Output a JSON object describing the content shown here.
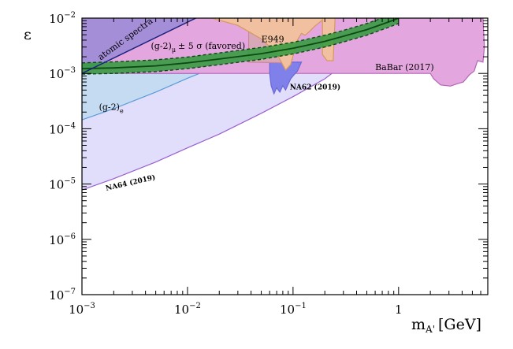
{
  "chart_data": {
    "type": "area",
    "xscale": "log",
    "yscale": "log",
    "xlim": [
      0.001,
      7
    ],
    "ylim": [
      1e-07,
      0.01
    ],
    "xlabel": "m",
    "xlabel_subscript": "A'",
    "xlabel_unit": "[GeV]",
    "ylabel": "ε",
    "grid": false,
    "x_ticks": [
      {
        "value": 0.001,
        "base": "10",
        "exp": "−3"
      },
      {
        "value": 0.01,
        "base": "10",
        "exp": "−2"
      },
      {
        "value": 0.1,
        "base": "10",
        "exp": "−1"
      },
      {
        "value": 1,
        "base": "1",
        "exp": ""
      }
    ],
    "y_ticks": [
      {
        "value": 1e-07,
        "base": "10",
        "exp": "−7"
      },
      {
        "value": 1e-06,
        "base": "10",
        "exp": "−6"
      },
      {
        "value": 1e-05,
        "base": "10",
        "exp": "−5"
      },
      {
        "value": 0.0001,
        "base": "10",
        "exp": "−4"
      },
      {
        "value": 0.001,
        "base": "10",
        "exp": "−3"
      },
      {
        "value": 0.01,
        "base": "10",
        "exp": "−2"
      }
    ],
    "regions": [
      {
        "name": "NA64 (2019)",
        "fill": "#e0defa",
        "stroke": "#9b5fd0",
        "points": [
          [
            0.001,
            7.8e-06
          ],
          [
            0.002,
            1.25e-05
          ],
          [
            0.005,
            2.5e-05
          ],
          [
            0.01,
            4.5e-05
          ],
          [
            0.02,
            8e-05
          ],
          [
            0.05,
            0.00019
          ],
          [
            0.1,
            0.00038
          ],
          [
            0.2,
            0.0008
          ],
          [
            0.5,
            0.003
          ],
          [
            1,
            0.0086
          ],
          [
            1.1,
            0.01
          ],
          [
            0.001,
            0.01
          ]
        ]
      },
      {
        "name": "(g-2)e",
        "fill": "#c4dbf2",
        "stroke": "#5b9bd8",
        "points": [
          [
            0.001,
            0.000145
          ],
          [
            0.002,
            0.00023
          ],
          [
            0.005,
            0.00046
          ],
          [
            0.01,
            0.00082
          ],
          [
            0.013,
            0.001
          ],
          [
            0.001,
            0.001
          ]
        ]
      },
      {
        "name": "BaBar (2017)",
        "fill": "#e3a6de",
        "stroke": "#b565b8",
        "points": [
          [
            0.001,
            0.001
          ],
          [
            2,
            0.001
          ],
          [
            2.15,
            0.0008
          ],
          [
            2.5,
            0.00062
          ],
          [
            3.1,
            0.00059
          ],
          [
            3.6,
            0.00065
          ],
          [
            4.1,
            0.0007
          ],
          [
            4.7,
            0.00095
          ],
          [
            5.2,
            0.0011
          ],
          [
            5.6,
            0.0017
          ],
          [
            6.3,
            0.0016
          ],
          [
            6.5,
            0.003
          ],
          [
            6.3,
            0.01
          ],
          [
            0.001,
            0.01
          ]
        ]
      },
      {
        "name": "NA62 (2019)",
        "fill": "#8080ea",
        "stroke": "#6868d8",
        "points": [
          [
            0.06,
            0.001
          ],
          [
            0.062,
            0.0006
          ],
          [
            0.066,
            0.00043
          ],
          [
            0.07,
            0.00055
          ],
          [
            0.075,
            0.00046
          ],
          [
            0.08,
            0.0006
          ],
          [
            0.085,
            0.0005
          ],
          [
            0.095,
            0.0008
          ],
          [
            0.1,
            0.0009
          ],
          [
            0.11,
            0.0011
          ],
          [
            0.12,
            0.0016
          ],
          [
            0.06,
            0.0016
          ]
        ]
      },
      {
        "name": "atomic spectra",
        "fill": "#a48ed8",
        "stroke": "#a48ed8",
        "points": [
          [
            0.001,
            0.001
          ],
          [
            0.012,
            0.01
          ],
          [
            0.001,
            0.01
          ]
        ]
      },
      {
        "name": "E949",
        "fill": "#d8a8b8",
        "stroke": "#c88898",
        "points": [
          [
            0.038,
            0.01
          ],
          [
            0.038,
            0.0016
          ],
          [
            0.09,
            0.00155
          ],
          [
            0.09,
            0.01
          ]
        ]
      },
      {
        "name": "orange",
        "fill": "#f0c0a0",
        "stroke": "#d8985a",
        "points": [
          [
            0.017,
            0.01
          ],
          [
            0.03,
            0.0074
          ],
          [
            0.05,
            0.0042
          ],
          [
            0.07,
            0.0023
          ],
          [
            0.085,
            0.00115
          ],
          [
            0.095,
            0.00145
          ],
          [
            0.11,
            0.004
          ],
          [
            0.12,
            0.0053
          ],
          [
            0.13,
            0.0049
          ],
          [
            0.14,
            0.0055
          ],
          [
            0.16,
            0.0071
          ],
          [
            0.2,
            0.01
          ]
        ]
      },
      {
        "name": "orange-spike",
        "fill": "#f0c0a0",
        "stroke": "#d8985a",
        "points": [
          [
            0.19,
            0.01
          ],
          [
            0.19,
            0.0022
          ],
          [
            0.21,
            0.0017
          ],
          [
            0.24,
            0.0017
          ],
          [
            0.25,
            0.01
          ]
        ]
      }
    ],
    "lines": [
      {
        "name": "atomic spectra",
        "stroke": "#1a237e",
        "points": [
          [
            0.001,
            0.001
          ],
          [
            0.012,
            0.01
          ]
        ]
      }
    ],
    "band": {
      "name": "(g-2)μ ± 5 σ (favored)",
      "fill": "#2f9a3a",
      "fill_opacity": 0.85,
      "center_stroke": "#0c4a14",
      "edge_stroke": "#0c4a14",
      "x": [
        0.001,
        0.002,
        0.005,
        0.01,
        0.02,
        0.05,
        0.1,
        0.2,
        0.3,
        0.5,
        0.8,
        1
      ],
      "center": [
        0.00122,
        0.00126,
        0.00137,
        0.00155,
        0.00182,
        0.00228,
        0.00285,
        0.0038,
        0.0047,
        0.0062,
        0.0085,
        0.01
      ],
      "upper": [
        0.00155,
        0.00162,
        0.00176,
        0.00198,
        0.00235,
        0.00295,
        0.00365,
        0.0049,
        0.006,
        0.008,
        0.011,
        0.013
      ],
      "lower": [
        0.00097,
        0.001,
        0.00108,
        0.00122,
        0.00144,
        0.0018,
        0.00225,
        0.003,
        0.0037,
        0.0049,
        0.0068,
        0.008
      ]
    },
    "labels": [
      {
        "text": "atomic spectra",
        "x": 0.0015,
        "y": 0.00172,
        "rotate": -36,
        "style": "small",
        "color": "#3a3acc"
      },
      {
        "text": "(g-2)",
        "sub": "μ",
        "tail": "± 5 σ (favored)",
        "x": 0.0045,
        "y": 0.0028,
        "style": "normal"
      },
      {
        "text": "E949",
        "x": 0.05,
        "y": 0.0037,
        "style": "large"
      },
      {
        "text": "BaBar (2017)",
        "x": 0.6,
        "y": 0.00115,
        "style": "normal"
      },
      {
        "text": "NA62 (2019)",
        "x": 0.093,
        "y": 0.00051,
        "style": "bold"
      },
      {
        "text": "(g-2)",
        "sub": "e",
        "x": 0.00145,
        "y": 0.00022,
        "style": "normal"
      },
      {
        "text": "NA64 (2019)",
        "x": 0.0017,
        "y": 7.6e-06,
        "rotate": -13,
        "style": "bold"
      }
    ]
  }
}
